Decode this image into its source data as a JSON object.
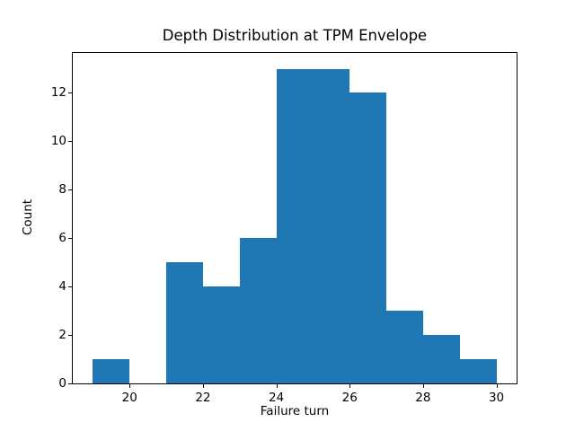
{
  "chart_data": {
    "type": "bar",
    "subtype": "histogram",
    "title": "Depth Distribution at TPM Envelope",
    "xlabel": "Failure turn",
    "ylabel": "Count",
    "bin_edges": [
      19,
      20,
      21,
      22,
      23,
      24,
      25,
      26,
      27,
      28,
      29,
      30
    ],
    "counts": [
      1,
      0,
      5,
      4,
      6,
      13,
      13,
      12,
      3,
      2,
      1
    ],
    "x_ticks": [
      20,
      22,
      24,
      26,
      28,
      30
    ],
    "y_ticks": [
      0,
      2,
      4,
      6,
      8,
      10,
      12
    ],
    "xlim": [
      18.45,
      30.55
    ],
    "ylim": [
      0,
      13.65
    ],
    "grid": false,
    "legend": "none",
    "bar_color": "#1f77b4",
    "axis_color": "#000000",
    "background_color": "#ffffff"
  }
}
